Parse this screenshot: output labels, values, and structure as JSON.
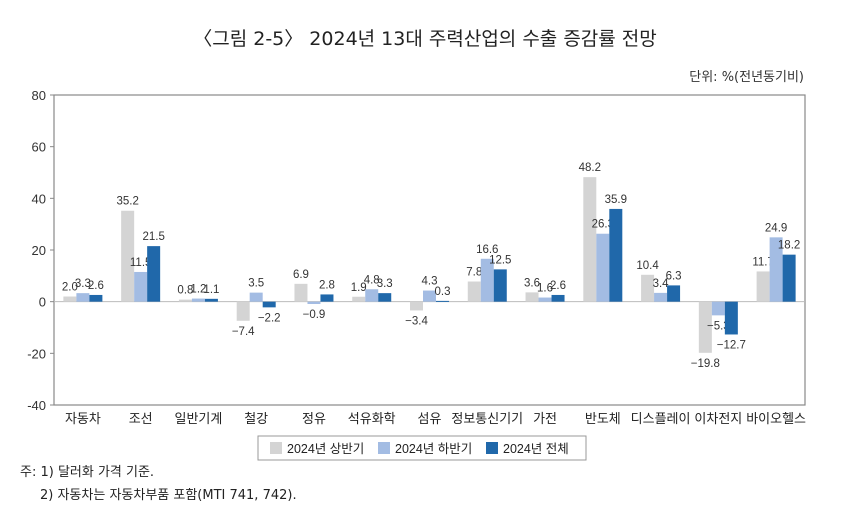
{
  "chart_data": {
    "type": "bar",
    "title": "〈그림 2-5〉 2024년 13대 주력산업의 수출 증감률 전망",
    "unit_label": "단위: %(전년동기비)",
    "categories": [
      "자동차",
      "조선",
      "일반기계",
      "철강",
      "정유",
      "석유화학",
      "섬유",
      "정보통신기기",
      "가전",
      "반도체",
      "디스플레이",
      "이차전지",
      "바이오헬스"
    ],
    "series": [
      {
        "name": "2024년 상반기",
        "color": "#d4d4d4",
        "values": [
          2.0,
          35.2,
          0.8,
          -7.4,
          6.9,
          1.9,
          -3.4,
          7.8,
          3.6,
          48.2,
          10.4,
          -19.8,
          11.7
        ]
      },
      {
        "name": "2024년 하반기",
        "color": "#a3bce3",
        "values": [
          3.3,
          11.5,
          1.2,
          3.5,
          -0.9,
          4.8,
          4.3,
          16.6,
          1.6,
          26.3,
          3.4,
          -5.3,
          24.9
        ]
      },
      {
        "name": "2024년 전체",
        "color": "#2068aa",
        "values": [
          2.6,
          21.5,
          1.1,
          -2.2,
          2.8,
          3.3,
          0.3,
          12.5,
          2.6,
          35.9,
          6.3,
          -12.7,
          18.2
        ]
      }
    ],
    "ylim": [
      -40,
      80
    ],
    "yticks": [
      "-40",
      "-20",
      "0",
      "20",
      "40",
      "60",
      "80"
    ],
    "legend_position": "bottom-center",
    "grid": false,
    "notes": [
      "주: 1) 달러화 가격 기준.",
      "2) 자동차는 자동차부품 포함(MTI 741, 742)."
    ]
  }
}
